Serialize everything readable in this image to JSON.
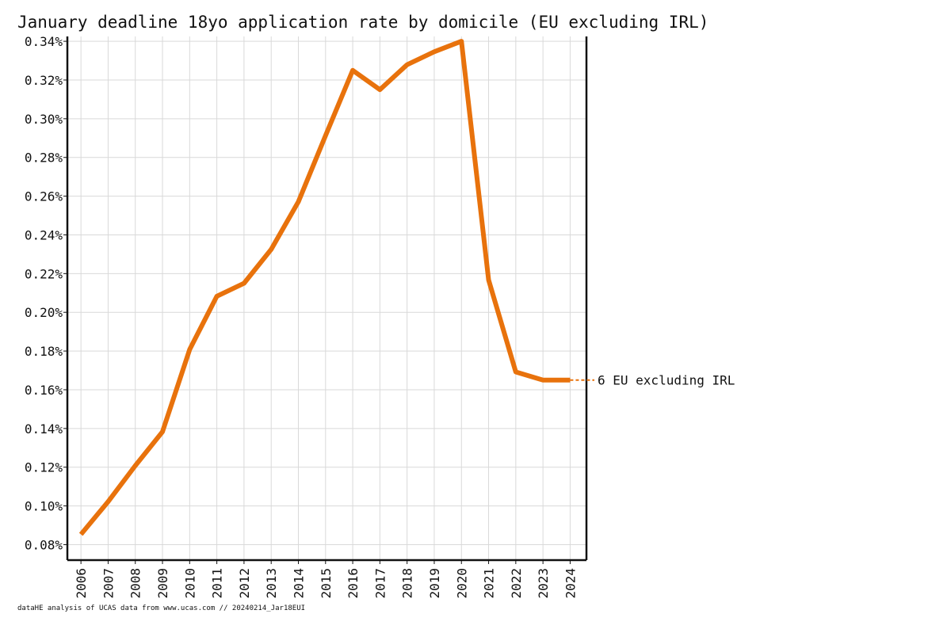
{
  "chart_data": {
    "type": "line",
    "title": "January deadline 18yo application rate by domicile (EU excluding IRL)",
    "xlabel": "",
    "ylabel": "",
    "x": [
      "2006",
      "2007",
      "2008",
      "2009",
      "2010",
      "2011",
      "2012",
      "2013",
      "2014",
      "2015",
      "2016",
      "2017",
      "2018",
      "2019",
      "2020",
      "2021",
      "2022",
      "2023",
      "2024"
    ],
    "series": [
      {
        "name": "6 EU excluding IRL",
        "color": "#e8720c",
        "values": [
          0.0853,
          0.1022,
          0.1208,
          0.1383,
          0.1808,
          0.2083,
          0.215,
          0.2325,
          0.2571,
          0.2913,
          0.325,
          0.315,
          0.3279,
          0.3346,
          0.34,
          0.2167,
          0.1692,
          0.165,
          0.165
        ]
      }
    ],
    "y_ticks": [
      "0.08%",
      "0.10%",
      "0.12%",
      "0.14%",
      "0.16%",
      "0.18%",
      "0.20%",
      "0.22%",
      "0.24%",
      "0.26%",
      "0.28%",
      "0.30%",
      "0.32%",
      "0.34%"
    ],
    "y_tick_values": [
      0.08,
      0.1,
      0.12,
      0.14,
      0.16,
      0.18,
      0.2,
      0.22,
      0.24,
      0.26,
      0.28,
      0.3,
      0.32,
      0.34
    ],
    "ylim": [
      0.072,
      0.3425
    ],
    "xlim": [
      2005.5,
      2024.6
    ],
    "grid": true,
    "legend": "end-of-line label, right"
  },
  "footer": "dataHE analysis of UCAS data from www.ucas.com // 20240214_Jar18EUI"
}
